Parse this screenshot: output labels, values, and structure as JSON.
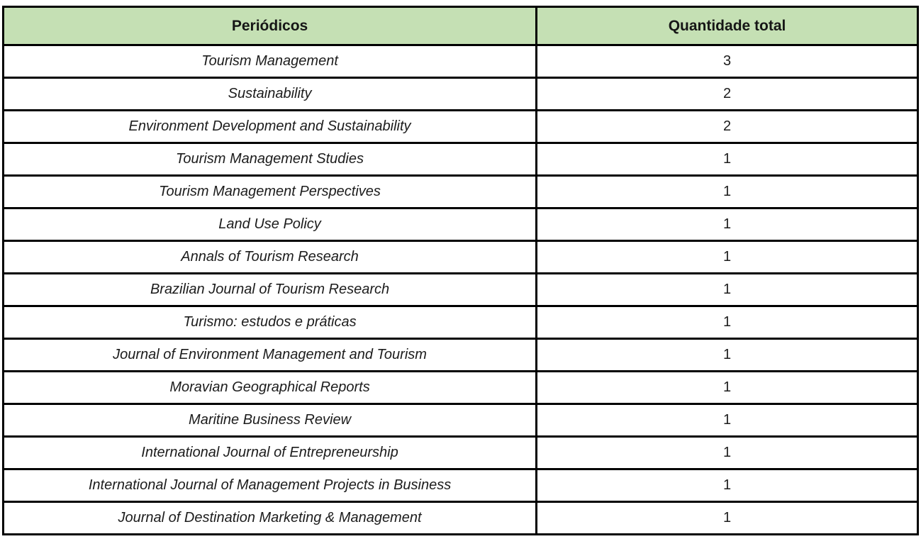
{
  "colors": {
    "header_bg": "#c5e0b4",
    "border": "#000000",
    "page_bg": "#ffffff"
  },
  "table": {
    "header": {
      "periodicos": "Periódicos",
      "quantidade": "Quantidade total"
    },
    "rows": [
      {
        "periodico": "Tourism Management",
        "quantidade": "3"
      },
      {
        "periodico": "Sustainability",
        "quantidade": "2"
      },
      {
        "periodico": "Environment Development and Sustainability",
        "quantidade": "2"
      },
      {
        "periodico": "Tourism Management Studies",
        "quantidade": "1"
      },
      {
        "periodico": "Tourism Management Perspectives",
        "quantidade": "1"
      },
      {
        "periodico": "Land Use Policy",
        "quantidade": "1"
      },
      {
        "periodico": "Annals of Tourism Research",
        "quantidade": "1"
      },
      {
        "periodico": "Brazilian Journal of Tourism Research",
        "quantidade": "1"
      },
      {
        "periodico": "Turismo: estudos e práticas",
        "quantidade": "1"
      },
      {
        "periodico": "Journal of Environment Management and Tourism",
        "quantidade": "1"
      },
      {
        "periodico": "Moravian Geographical Reports",
        "quantidade": "1"
      },
      {
        "periodico": "Maritine Business Review",
        "quantidade": "1"
      },
      {
        "periodico": "International Journal of Entrepreneurship",
        "quantidade": "1"
      },
      {
        "periodico": "International Journal of Management Projects in Business",
        "quantidade": "1"
      },
      {
        "periodico": "Journal of Destination Marketing &amp; Management",
        "quantidade": "1"
      }
    ]
  }
}
